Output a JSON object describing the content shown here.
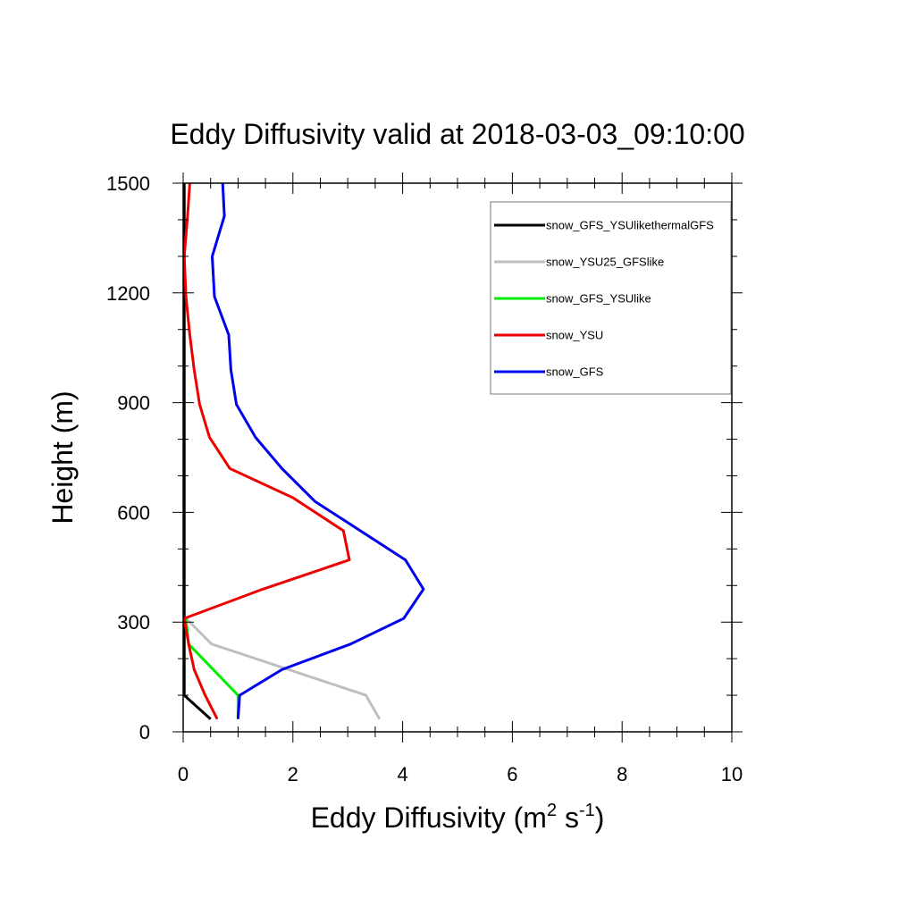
{
  "chart_data": {
    "type": "line",
    "title": "Eddy Diffusivity valid at 2018-03-03_09:10:00",
    "xlabel": {
      "base": "Eddy Diffusivity (m",
      "sup1": "2",
      "mid": " s",
      "sup2": "-1",
      "end": ")"
    },
    "ylabel": "Height (m)",
    "xlim": [
      0,
      10
    ],
    "ylim": [
      0,
      1500
    ],
    "xticks": [
      0,
      2,
      4,
      6,
      8,
      10
    ],
    "yticks": [
      0,
      300,
      600,
      900,
      1200,
      1500
    ],
    "grid": false,
    "legend_position": "top-right",
    "series": [
      {
        "name": "snow_GFS_YSUlikethermalGFS",
        "color": "#000000",
        "x": [
          0.5,
          0.02,
          0.02,
          0.02,
          0.02,
          0.02,
          0.02,
          0.02,
          0.02,
          0.02,
          0.02,
          0.02,
          0.02
        ],
        "y": [
          35,
          100,
          170,
          240,
          310,
          390,
          470,
          550,
          640,
          720,
          900,
          1200,
          1500
        ]
      },
      {
        "name": "snow_YSU25_GFSlike",
        "color": "#bfbfbf",
        "x": [
          3.58,
          3.33,
          0.52,
          0.05
        ],
        "y": [
          35,
          100,
          240,
          310
        ]
      },
      {
        "name": "snow_GFS_YSUlike",
        "color": "#00ee00",
        "x": [
          1.0,
          1.0,
          0.1,
          0.05
        ],
        "y": [
          35,
          100,
          240,
          310
        ]
      },
      {
        "name": "snow_YSU",
        "color": "#ee0000",
        "x": [
          0.62,
          0.4,
          0.2,
          0.1,
          0.02,
          1.45,
          3.03,
          2.92,
          2.0,
          0.85,
          0.48,
          0.3,
          0.2,
          0.12,
          0.05,
          0.02,
          0.08,
          0.12
        ],
        "y": [
          35,
          100,
          170,
          240,
          310,
          390,
          470,
          550,
          640,
          720,
          805,
          895,
          990,
          1085,
          1190,
          1300,
          1410,
          1500
        ]
      },
      {
        "name": "snow_GFS",
        "color": "#0000ee",
        "x": [
          1.0,
          1.03,
          1.8,
          3.05,
          4.02,
          4.38,
          4.05,
          2.4,
          1.8,
          1.32,
          0.97,
          0.87,
          0.83,
          0.57,
          0.53,
          0.75,
          0.72
        ],
        "y": [
          35,
          100,
          170,
          240,
          310,
          390,
          470,
          630,
          720,
          805,
          895,
          990,
          1085,
          1190,
          1300,
          1410,
          1500
        ]
      }
    ]
  }
}
